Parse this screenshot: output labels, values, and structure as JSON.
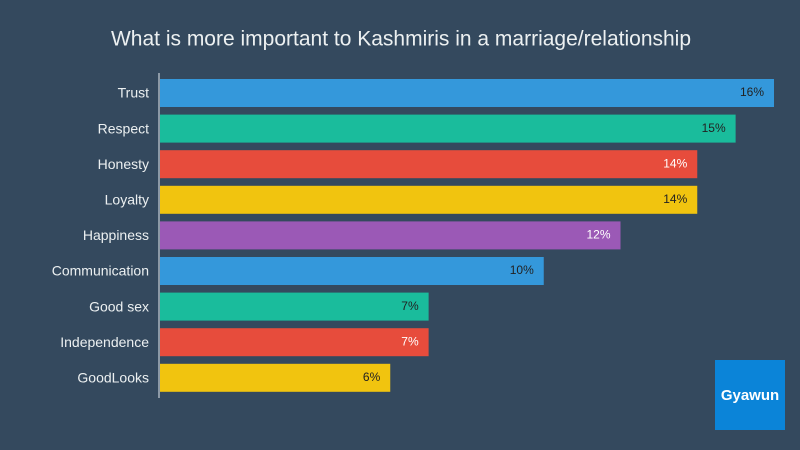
{
  "chart_data": {
    "type": "bar",
    "orientation": "horizontal",
    "title": "What is more important to Kashmiris in a marriage/relationship",
    "categories": [
      "Trust",
      "Respect",
      "Honesty",
      "Loyalty",
      "Happiness",
      "Communication",
      "Good sex",
      "Independence",
      "GoodLooks"
    ],
    "values": [
      16,
      15,
      14,
      14,
      12,
      10,
      7,
      7,
      6
    ],
    "value_labels": [
      "16%",
      "15%",
      "14%",
      "14%",
      "12%",
      "10%",
      "7%",
      "7%",
      "6%"
    ],
    "colors": [
      "#3498db",
      "#1abc9c",
      "#e74c3c",
      "#f1c40f",
      "#9b59b6",
      "#3498db",
      "#1abc9c",
      "#e74c3c",
      "#f1c40f"
    ],
    "value_label_colors": [
      "#222222",
      "#222222",
      "#ffffff",
      "#222222",
      "#ffffff",
      "#222222",
      "#222222",
      "#ffffff",
      "#222222"
    ],
    "watermark": "Gyawun"
  }
}
